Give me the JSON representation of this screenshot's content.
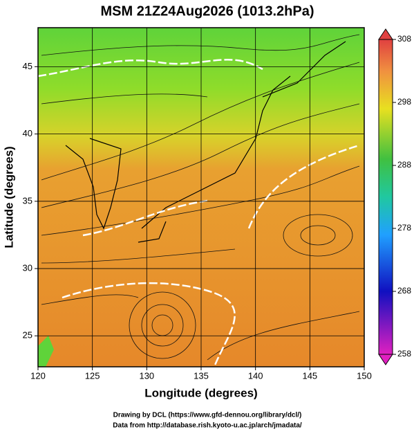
{
  "title": "MSM 21Z24Aug2026 (1013.2hPa)",
  "map": {
    "xlabel": "Longitude (degrees)",
    "ylabel": "Latitude  (degrees)",
    "xlim": [
      120,
      150
    ],
    "ylim": [
      22.7,
      47.9
    ],
    "xticks": [
      120,
      125,
      130,
      135,
      140,
      145,
      150
    ],
    "yticks": [
      25,
      30,
      35,
      40,
      45
    ],
    "grid": true
  },
  "colorbar": {
    "lim": [
      258,
      308
    ],
    "ticks": [
      258,
      268,
      278,
      288,
      298,
      308
    ]
  },
  "credits": [
    "Drawing by DCL (https://www.gfd-dennou.org/library/dcl/)",
    "Data from http://database.rish.kyoto-u.ac.jp/arch/jmadata/"
  ]
}
